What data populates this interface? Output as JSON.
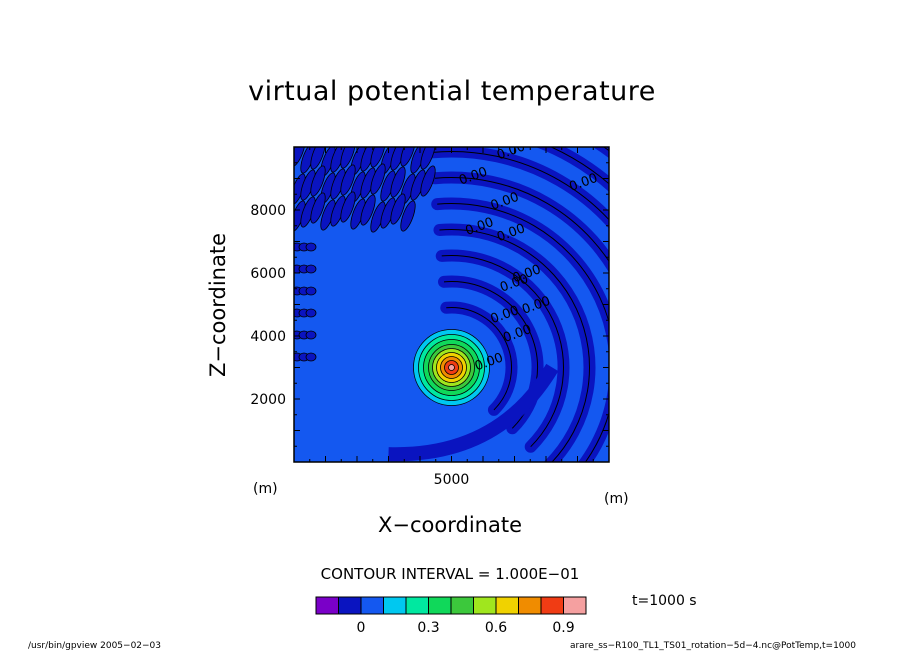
{
  "chart_data": {
    "type": "heatmap",
    "title": "virtual potential temperature",
    "xlabel": "X−coordinate",
    "ylabel": "Z−coordinate",
    "x_unit": "(m)",
    "y_unit": "(m)",
    "xlim": [
      0,
      10000
    ],
    "ylim": [
      0,
      10000
    ],
    "x_ticks": [
      5000
    ],
    "y_ticks": [
      2000,
      4000,
      6000,
      8000
    ],
    "contour_interval_text": "CONTOUR INTERVAL = 1.000E−01",
    "contour_labels": [
      "0.00",
      "0.00",
      "0.00",
      "0.00",
      "0.00",
      "0.00",
      "0.00",
      "0.00",
      "0.00",
      "0.00",
      "0.00",
      "0.00"
    ],
    "anomaly_center": {
      "x": 5000,
      "z": 3000,
      "max": 1.0
    },
    "colorbar": {
      "levels": [
        -0.2,
        -0.1,
        0,
        0.1,
        0.2,
        0.3,
        0.4,
        0.5,
        0.6,
        0.7,
        0.8,
        0.9,
        1.0
      ],
      "tick_labels": [
        "0",
        "0.3",
        "0.6",
        "0.9"
      ],
      "tick_values": [
        0,
        0.3,
        0.6,
        0.9
      ],
      "colors": [
        "#7a00c8",
        "#0a14c0",
        "#1458f0",
        "#00c8f0",
        "#00e8a0",
        "#10d85a",
        "#3cc83c",
        "#a0e61e",
        "#f0d200",
        "#f08c00",
        "#f03c14",
        "#f5a0a0"
      ]
    },
    "grid": false
  },
  "time_label": "t=1000 s",
  "footer_left": "/usr/bin/gpview  2005−02−03",
  "footer_right": "arare_ss−R100_TL1_TS01_rotation−5d−4.nc@PotTemp,t=1000"
}
